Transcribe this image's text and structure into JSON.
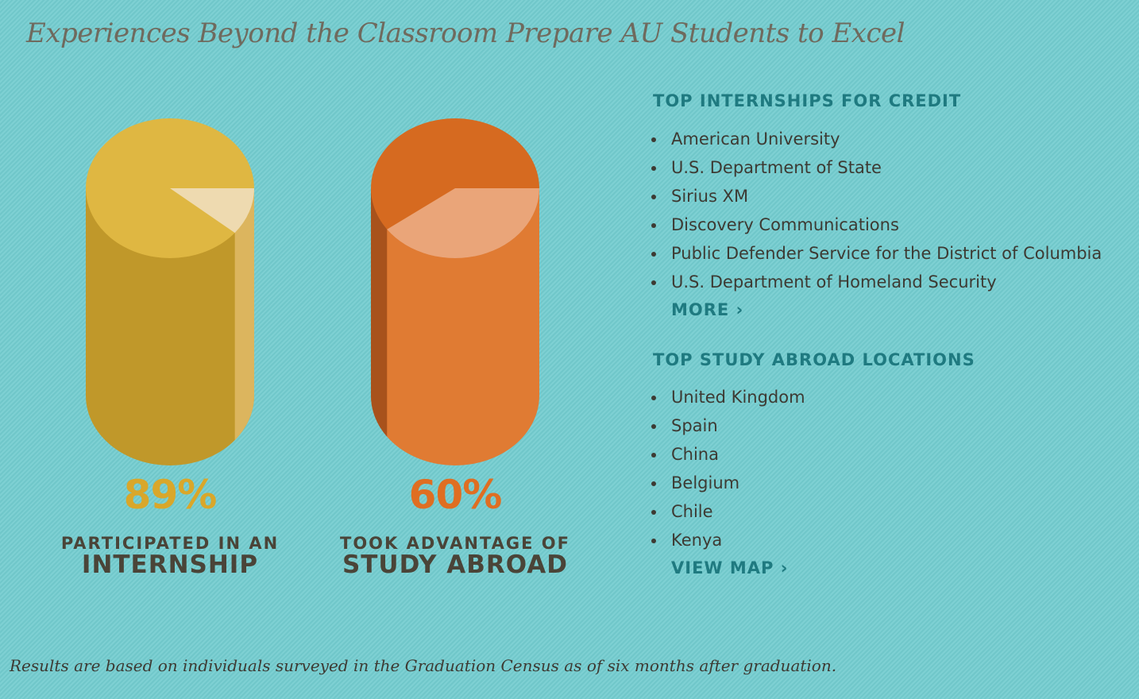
{
  "title": "Experiences Beyond the Classroom Prepare AU Students to Excel",
  "chart_data": {
    "type": "pie",
    "items": [
      {
        "value": 89,
        "label": "89%",
        "caption_line1": "PARTICIPATED IN AN",
        "caption_line2": "INTERNSHIP",
        "colors": {
          "top": "#dfb742",
          "body": "#c0982a",
          "remainder": "#eedab0",
          "remainder_side": "#dcb55e",
          "text": "#d9a72a"
        }
      },
      {
        "value": 60,
        "label": "60%",
        "caption_line1": "TOOK ADVANTAGE OF",
        "caption_line2": "STUDY ABROAD",
        "colors": {
          "top": "#d66a20",
          "body": "#e07b33",
          "remainder": "#eaa579",
          "remainder_side": "#a8521c",
          "text": "#df6e22"
        }
      }
    ]
  },
  "internships": {
    "heading": "TOP INTERNSHIPS FOR CREDIT",
    "items": [
      "American University",
      "U.S. Department of State",
      "Sirius XM",
      "Discovery Communications",
      "Public Defender Service for the District of Columbia",
      "U.S. Department of Homeland Security"
    ],
    "link": "MORE ›"
  },
  "study_abroad": {
    "heading": "TOP STUDY ABROAD LOCATIONS",
    "items": [
      "United Kingdom",
      "Spain",
      "China",
      "Belgium",
      "Chile",
      "Kenya"
    ],
    "link": "VIEW MAP ›"
  },
  "footnote": "Results are based on individuals surveyed in the Graduation Census as of six months after graduation."
}
